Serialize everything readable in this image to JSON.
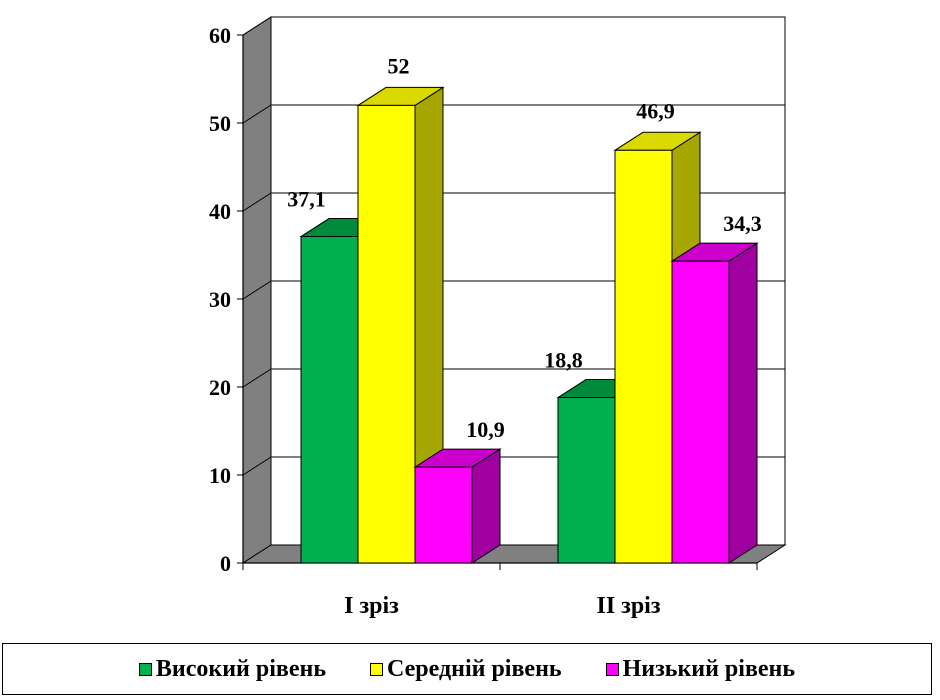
{
  "chart_data": {
    "type": "bar",
    "categories": [
      "I зріз",
      "II зріз"
    ],
    "series": [
      {
        "name": "Високий рівень",
        "values": [
          37.1,
          18.8
        ],
        "labels": [
          "37,1",
          "18,8"
        ],
        "color": "#00b050",
        "side_color": "#007a35",
        "top_color": "#008a3c"
      },
      {
        "name": "Середній рівень",
        "values": [
          52,
          46.9
        ],
        "labels": [
          "52",
          "46,9"
        ],
        "color": "#ffff00",
        "side_color": "#a6a600",
        "top_color": "#d9d900"
      },
      {
        "name": "Низький рівень",
        "values": [
          10.9,
          34.3
        ],
        "labels": [
          "10,9",
          "34,3"
        ],
        "color": "#ff00ff",
        "side_color": "#a000a0",
        "top_color": "#cc00cc"
      }
    ],
    "y_ticks": [
      "0",
      "10",
      "20",
      "30",
      "40",
      "50",
      "60"
    ],
    "ylim": [
      0,
      60
    ],
    "grid": true,
    "legend_position": "bottom",
    "style": "3d-clustered-bar",
    "wall_color": "#808080"
  }
}
